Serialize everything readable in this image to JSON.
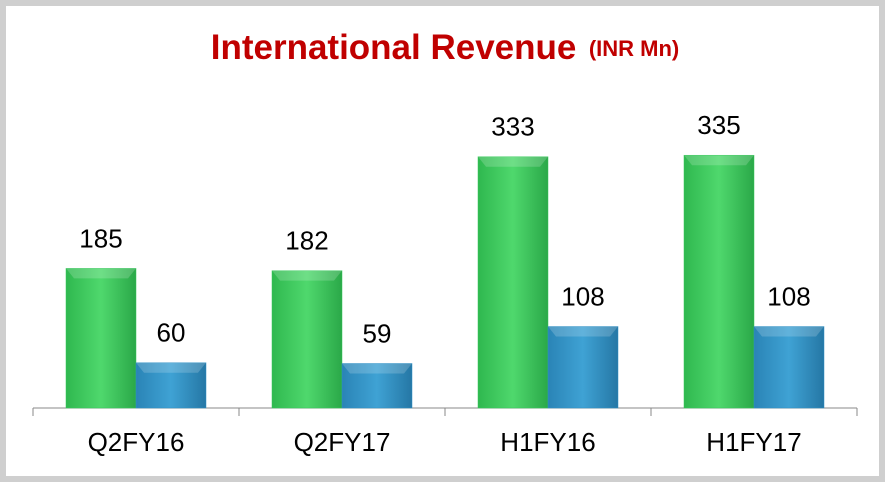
{
  "chart_data": {
    "type": "bar",
    "title": "International Revenue",
    "subtitle": "(INR Mn)",
    "categories": [
      "Q2FY16",
      "Q2FY17",
      "H1FY16",
      "H1FY17"
    ],
    "series": [
      {
        "color": "#34c759",
        "values": [
          185,
          182,
          333,
          335
        ]
      },
      {
        "color": "#2e8fc4",
        "values": [
          60,
          59,
          108,
          108
        ]
      }
    ],
    "ylim": [
      0,
      440
    ]
  }
}
